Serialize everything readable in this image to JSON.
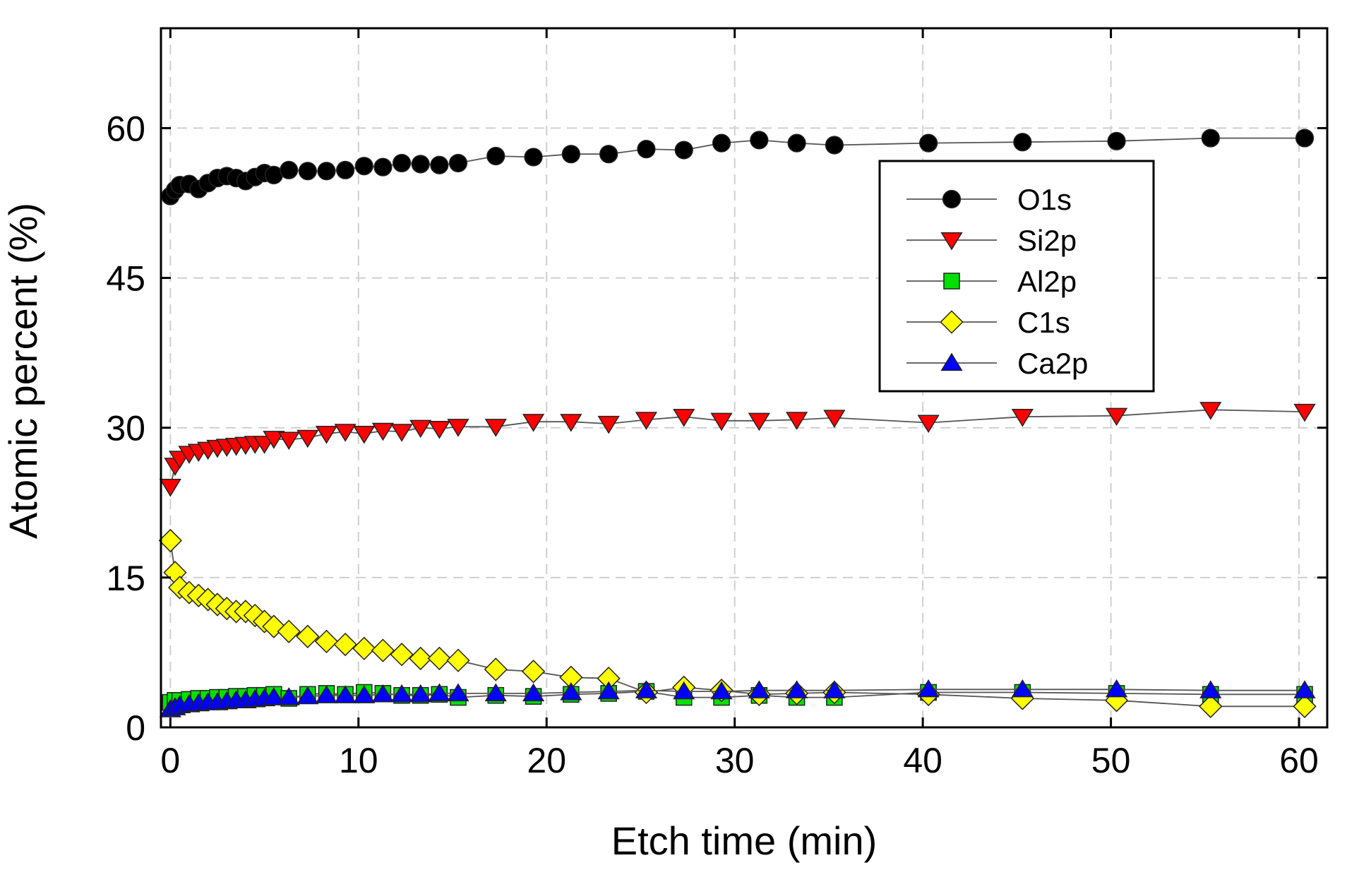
{
  "chart_data": {
    "type": "scatter",
    "xlabel": "Etch time (min)",
    "ylabel": "Atomic percent (%)",
    "xlim": [
      -0.5,
      61.5
    ],
    "ylim": [
      0,
      70
    ],
    "xticks": [
      0,
      10,
      20,
      30,
      40,
      50,
      60
    ],
    "yticks": [
      0,
      15,
      30,
      45,
      60
    ],
    "grid": true,
    "legend_position": "top-right",
    "line_color": "#555555",
    "series": [
      {
        "name": "O1s",
        "marker": "circle",
        "color": "#000000",
        "x": [
          0,
          0.25,
          0.5,
          1,
          1.5,
          2,
          2.5,
          3,
          3.5,
          4,
          4.5,
          5,
          5.5,
          6.3,
          7.3,
          8.3,
          9.3,
          10.3,
          11.3,
          12.3,
          13.3,
          14.3,
          15.3,
          17.3,
          19.3,
          21.3,
          23.3,
          25.3,
          27.3,
          29.3,
          31.3,
          33.3,
          35.3,
          40.3,
          45.3,
          50.3,
          55.3,
          60.3
        ],
        "y": [
          53.2,
          53.8,
          54.3,
          54.4,
          53.9,
          54.5,
          55.0,
          55.2,
          55.0,
          54.7,
          55.1,
          55.5,
          55.3,
          55.8,
          55.7,
          55.7,
          55.8,
          56.2,
          56.1,
          56.5,
          56.4,
          56.3,
          56.5,
          57.2,
          57.1,
          57.4,
          57.4,
          57.9,
          57.8,
          58.5,
          58.8,
          58.5,
          58.3,
          58.5,
          58.6,
          58.7,
          59.0,
          59.0
        ]
      },
      {
        "name": "Si2p",
        "marker": "triangle-down",
        "color": "#ff0000",
        "x": [
          0,
          0.25,
          0.5,
          1,
          1.5,
          2,
          2.5,
          3,
          3.5,
          4,
          4.5,
          5,
          5.5,
          6.3,
          7.3,
          8.3,
          9.3,
          10.3,
          11.3,
          12.3,
          13.3,
          14.3,
          15.3,
          17.3,
          19.3,
          21.3,
          23.3,
          25.3,
          27.3,
          29.3,
          31.3,
          33.3,
          35.3,
          40.3,
          45.3,
          50.3,
          55.3,
          60.3
        ],
        "y": [
          24.1,
          26.2,
          26.9,
          27.4,
          27.6,
          27.8,
          28.0,
          28.1,
          28.2,
          28.3,
          28.4,
          28.4,
          28.9,
          28.8,
          29.0,
          29.4,
          29.6,
          29.4,
          29.7,
          29.6,
          30.0,
          29.9,
          30.1,
          30.1,
          30.6,
          30.6,
          30.4,
          30.8,
          31.1,
          30.7,
          30.7,
          30.8,
          31.0,
          30.5,
          31.1,
          31.2,
          31.8,
          31.6
        ]
      },
      {
        "name": "Al2p",
        "marker": "square",
        "color": "#00e000",
        "x": [
          0,
          0.25,
          0.5,
          1,
          1.5,
          2,
          2.5,
          3,
          3.5,
          4,
          4.5,
          5,
          5.5,
          6.3,
          7.3,
          8.3,
          9.3,
          10.3,
          11.3,
          12.3,
          13.3,
          14.3,
          15.3,
          17.3,
          19.3,
          21.3,
          23.3,
          25.3,
          27.3,
          29.3,
          31.3,
          33.3,
          35.3,
          40.3,
          45.3,
          50.3,
          55.3,
          60.3
        ],
        "y": [
          2.5,
          2.7,
          2.7,
          2.8,
          2.9,
          2.9,
          3.0,
          3.0,
          3.1,
          3.1,
          3.2,
          3.2,
          3.3,
          2.9,
          3.3,
          3.4,
          3.3,
          3.5,
          3.4,
          3.2,
          3.2,
          3.3,
          3.0,
          3.2,
          3.1,
          3.3,
          3.4,
          3.6,
          3.0,
          3.0,
          3.2,
          3.0,
          3.0,
          3.5,
          3.5,
          3.4,
          3.3,
          3.3
        ]
      },
      {
        "name": "C1s",
        "marker": "diamond",
        "color": "#ffff00",
        "x": [
          0,
          0.25,
          0.5,
          1,
          1.5,
          2,
          2.5,
          3,
          3.5,
          4,
          4.5,
          5,
          5.5,
          6.3,
          7.3,
          8.3,
          9.3,
          10.3,
          11.3,
          12.3,
          13.3,
          14.3,
          15.3,
          17.3,
          19.3,
          21.3,
          23.3,
          25.3,
          27.3,
          29.3,
          31.3,
          33.3,
          35.3,
          40.3,
          45.3,
          50.3,
          55.3,
          60.3
        ],
        "y": [
          18.7,
          15.5,
          14.0,
          13.5,
          13.2,
          12.8,
          12.3,
          11.9,
          11.6,
          11.6,
          11.2,
          10.6,
          10.1,
          9.6,
          9.1,
          8.6,
          8.3,
          7.9,
          7.7,
          7.3,
          6.9,
          6.9,
          6.7,
          5.8,
          5.6,
          5.0,
          4.9,
          3.5,
          4.0,
          3.7,
          3.3,
          3.4,
          3.5,
          3.3,
          2.9,
          2.7,
          2.1,
          2.1
        ]
      },
      {
        "name": "Ca2p",
        "marker": "triangle-up",
        "color": "#0000ff",
        "x": [
          0,
          0.25,
          0.5,
          1,
          1.5,
          2,
          2.5,
          3,
          3.5,
          4,
          4.5,
          5,
          5.5,
          6.3,
          7.3,
          8.3,
          9.3,
          10.3,
          11.3,
          12.3,
          13.3,
          14.3,
          15.3,
          17.3,
          19.3,
          21.3,
          23.3,
          25.3,
          27.3,
          29.3,
          31.3,
          33.3,
          35.3,
          40.3,
          45.3,
          50.3,
          55.3,
          60.3
        ],
        "y": [
          1.8,
          2.0,
          2.2,
          2.3,
          2.4,
          2.5,
          2.5,
          2.6,
          2.7,
          2.7,
          2.8,
          2.9,
          3.0,
          3.0,
          3.1,
          3.2,
          3.2,
          3.2,
          3.3,
          3.3,
          3.3,
          3.4,
          3.4,
          3.4,
          3.4,
          3.5,
          3.6,
          3.7,
          3.6,
          3.6,
          3.7,
          3.7,
          3.7,
          3.8,
          3.8,
          3.8,
          3.7,
          3.7
        ]
      }
    ]
  }
}
